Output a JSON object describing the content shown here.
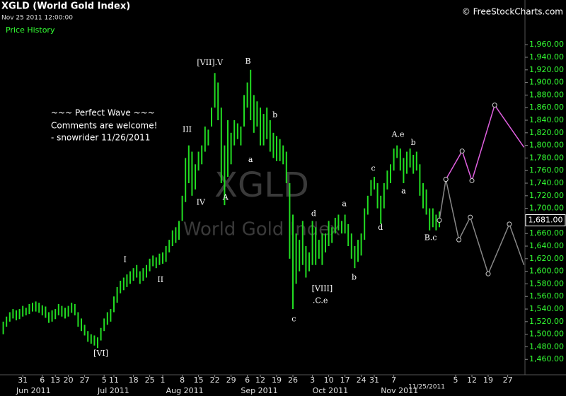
{
  "header": {
    "title": "XGLD (World Gold Index)",
    "timestamp": "Nov 25 2011 12:00:00",
    "panel": "Price History",
    "brand": "© FreeStockCharts.com"
  },
  "watermark": {
    "symbol": "XGLD",
    "name": "World Gold Index"
  },
  "comment": [
    "~~~ Perfect Wave ~~~",
    "Comments are welcome!",
    "- snowrider  11/26/2011"
  ],
  "chart_data": {
    "type": "ohlc",
    "color": "#22dd22",
    "xlim": [
      -1,
      160
    ],
    "ylim": [
      1435,
      2031
    ],
    "yticks": [
      {
        "value": 1460,
        "label": "1,460.00"
      },
      {
        "value": 1480,
        "label": "1,480.00"
      },
      {
        "value": 1500,
        "label": "1,500.00"
      },
      {
        "value": 1520,
        "label": "1,520.00"
      },
      {
        "value": 1540,
        "label": "1,540.00"
      },
      {
        "value": 1560,
        "label": "1,560.00"
      },
      {
        "value": 1580,
        "label": "1,580.00"
      },
      {
        "value": 1600,
        "label": "1,600.00"
      },
      {
        "value": 1620,
        "label": "1,620.00"
      },
      {
        "value": 1640,
        "label": "1,640.00"
      },
      {
        "value": 1660,
        "label": "1,660.00"
      },
      {
        "value": 1680,
        "label": "1,680.00"
      },
      {
        "value": 1700,
        "label": "1,700.00"
      },
      {
        "value": 1720,
        "label": "1,720.00"
      },
      {
        "value": 1740,
        "label": "1,740.00"
      },
      {
        "value": 1760,
        "label": "1,760.00"
      },
      {
        "value": 1780,
        "label": "1,780.00"
      },
      {
        "value": 1800,
        "label": "1,800.00"
      },
      {
        "value": 1820,
        "label": "1,820.00"
      },
      {
        "value": 1840,
        "label": "1,840.00"
      },
      {
        "value": 1860,
        "label": "1,860.00"
      },
      {
        "value": 1880,
        "label": "1,880.00"
      },
      {
        "value": 1900,
        "label": "1,900.00"
      },
      {
        "value": 1920,
        "label": "1,920.00"
      },
      {
        "value": 1940,
        "label": "1,940.00"
      },
      {
        "value": 1960,
        "label": "1,960.00"
      }
    ],
    "xticks": [
      {
        "value": 6,
        "label": "31"
      },
      {
        "value": 12,
        "label": "6"
      },
      {
        "value": 16,
        "label": "13"
      },
      {
        "value": 20,
        "label": "20"
      },
      {
        "value": 25,
        "label": "27"
      },
      {
        "value": 31,
        "label": "5"
      },
      {
        "value": 34,
        "label": "11"
      },
      {
        "value": 40,
        "label": "18"
      },
      {
        "value": 45,
        "label": "25"
      },
      {
        "value": 49,
        "label": "1"
      },
      {
        "value": 55,
        "label": "8"
      },
      {
        "value": 60,
        "label": "15"
      },
      {
        "value": 65,
        "label": "22"
      },
      {
        "value": 70,
        "label": "29"
      },
      {
        "value": 75,
        "label": "6"
      },
      {
        "value": 79,
        "label": "12"
      },
      {
        "value": 84,
        "label": "19"
      },
      {
        "value": 89,
        "label": "26"
      },
      {
        "value": 95,
        "label": "3"
      },
      {
        "value": 100,
        "label": "10"
      },
      {
        "value": 105,
        "label": "17"
      },
      {
        "value": 110,
        "label": "24"
      },
      {
        "value": 114,
        "label": "31"
      },
      {
        "value": 120,
        "label": "7"
      },
      {
        "value": 139,
        "label": "5"
      },
      {
        "value": 144,
        "label": "12"
      },
      {
        "value": 149,
        "label": "19"
      },
      {
        "value": 155,
        "label": "27"
      }
    ],
    "month_labels": [
      {
        "value": 4,
        "label": "Jun 2011"
      },
      {
        "value": 29,
        "label": "Jul 2011"
      },
      {
        "value": 50,
        "label": "Aug 2011"
      },
      {
        "value": 73,
        "label": "Sep 2011"
      },
      {
        "value": 95,
        "label": "Oct 2011"
      },
      {
        "value": 116,
        "label": "Nov 2011"
      }
    ],
    "cursor_label": "11/25/2011",
    "last_price": 1681,
    "last_price_label": "1,681.00",
    "high": [
      1520,
      1528,
      1535,
      1540,
      1538,
      1540,
      1545,
      1542,
      1548,
      1550,
      1552,
      1550,
      1546,
      1544,
      1535,
      1538,
      1540,
      1548,
      1545,
      1542,
      1545,
      1550,
      1548,
      1535,
      1525,
      1515,
      1505,
      1500,
      1498,
      1495,
      1510,
      1525,
      1535,
      1540,
      1560,
      1575,
      1585,
      1590,
      1595,
      1600,
      1605,
      1610,
      1600,
      1605,
      1610,
      1620,
      1625,
      1622,
      1628,
      1630,
      1640,
      1650,
      1665,
      1670,
      1680,
      1720,
      1780,
      1800,
      1790,
      1770,
      1790,
      1800,
      1830,
      1825,
      1860,
      1915,
      1900,
      1860,
      1800,
      1840,
      1820,
      1840,
      1835,
      1830,
      1880,
      1900,
      1920,
      1880,
      1870,
      1860,
      1850,
      1860,
      1840,
      1820,
      1815,
      1810,
      1800,
      1790,
      1740,
      1690,
      1660,
      1650,
      1680,
      1640,
      1630,
      1680,
      1670,
      1650,
      1660,
      1660,
      1680,
      1670,
      1685,
      1690,
      1680,
      1690,
      1675,
      1660,
      1640,
      1650,
      1660,
      1700,
      1720,
      1745,
      1750,
      1740,
      1720,
      1740,
      1760,
      1770,
      1795,
      1800,
      1795,
      1780,
      1790,
      1795,
      1785,
      1790,
      1770,
      1740,
      1730,
      1700,
      1700,
      1690,
      1695
    ],
    "low": [
      1500,
      1512,
      1520,
      1525,
      1522,
      1524,
      1528,
      1530,
      1532,
      1536,
      1536,
      1534,
      1530,
      1526,
      1518,
      1520,
      1524,
      1530,
      1528,
      1525,
      1528,
      1534,
      1530,
      1512,
      1505,
      1498,
      1488,
      1485,
      1482,
      1478,
      1490,
      1505,
      1515,
      1520,
      1535,
      1550,
      1565,
      1570,
      1575,
      1580,
      1585,
      1590,
      1580,
      1585,
      1590,
      1600,
      1608,
      1605,
      1610,
      1612,
      1615,
      1630,
      1640,
      1645,
      1650,
      1680,
      1710,
      1740,
      1720,
      1730,
      1760,
      1770,
      1790,
      1800,
      1830,
      1860,
      1840,
      1740,
      1705,
      1750,
      1770,
      1800,
      1810,
      1800,
      1830,
      1860,
      1840,
      1820,
      1830,
      1800,
      1800,
      1810,
      1790,
      1780,
      1775,
      1775,
      1770,
      1740,
      1620,
      1540,
      1580,
      1600,
      1610,
      1590,
      1600,
      1610,
      1610,
      1620,
      1610,
      1630,
      1640,
      1645,
      1660,
      1665,
      1660,
      1660,
      1640,
      1620,
      1605,
      1615,
      1625,
      1650,
      1690,
      1720,
      1730,
      1700,
      1675,
      1700,
      1730,
      1740,
      1760,
      1780,
      1760,
      1740,
      1755,
      1765,
      1755,
      1760,
      1720,
      1700,
      1690,
      1665,
      1670,
      1665,
      1670
    ],
    "series": [
      {
        "color": "#888888",
        "x": [
          134,
          136,
          140,
          143.5,
          149,
          155.5,
          160
        ],
        "values": [
          1681,
          1746,
          1650,
          1686,
          1596,
          1675,
          1610
        ]
      },
      {
        "color": "#e060e0",
        "x": [
          136,
          141,
          144,
          151,
          160
        ],
        "values": [
          1746,
          1791,
          1744,
          1864,
          1797
        ]
      }
    ],
    "annotations": [
      {
        "text": "[VI]",
        "x": 30,
        "y": 1469
      },
      {
        "text": "I",
        "x": 37.4,
        "y": 1618
      },
      {
        "text": "II",
        "x": 48.3,
        "y": 1586
      },
      {
        "text": "III",
        "x": 56.5,
        "y": 1825
      },
      {
        "text": "IV",
        "x": 60.7,
        "y": 1709
      },
      {
        "text": "[VII].V",
        "x": 63.5,
        "y": 1931
      },
      {
        "text": "A",
        "x": 68.3,
        "y": 1717
      },
      {
        "text": "B",
        "x": 75.2,
        "y": 1933
      },
      {
        "text": "a",
        "x": 76,
        "y": 1777
      },
      {
        "text": "b",
        "x": 83.5,
        "y": 1848
      },
      {
        "text": "c",
        "x": 89.3,
        "y": 1524
      },
      {
        "text": "d",
        "x": 95.4,
        "y": 1691
      },
      {
        "text": "[VIII]",
        "x": 98,
        "y": 1572
      },
      {
        "text": ".C.e",
        "x": 97.4,
        "y": 1553
      },
      {
        "text": "a",
        "x": 104.8,
        "y": 1707
      },
      {
        "text": "b",
        "x": 107.8,
        "y": 1590
      },
      {
        "text": "c",
        "x": 113.7,
        "y": 1763
      },
      {
        "text": "d",
        "x": 115.9,
        "y": 1669
      },
      {
        "text": "A.e",
        "x": 121.3,
        "y": 1817
      },
      {
        "text": "b",
        "x": 126,
        "y": 1804
      },
      {
        "text": "a",
        "x": 123,
        "y": 1727
      },
      {
        "text": "B.c",
        "x": 131.3,
        "y": 1653
      }
    ]
  }
}
